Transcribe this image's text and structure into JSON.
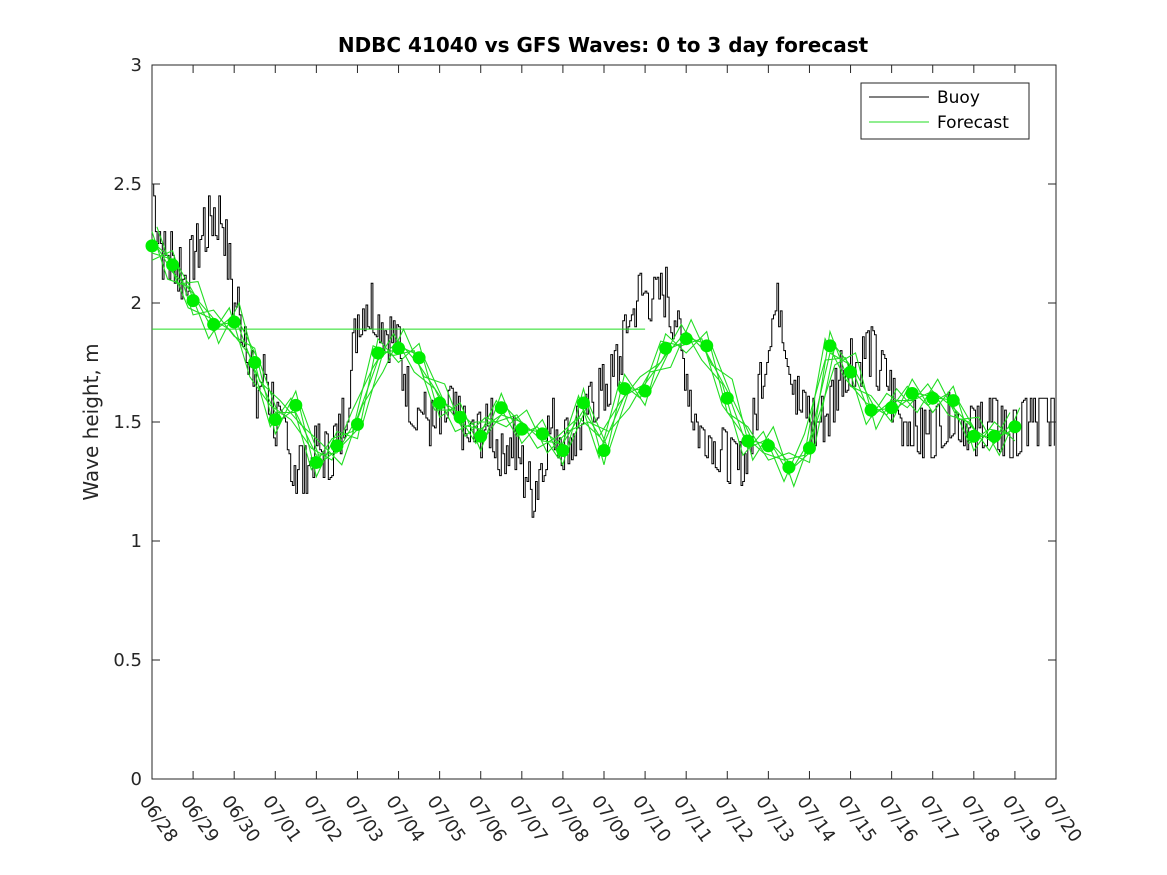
{
  "chart_data": {
    "type": "line",
    "title": "NDBC 41040 vs GFS Waves: 0 to 3 day forecast",
    "xlabel": "",
    "ylabel": "Wave height, m",
    "x_ticks": [
      "06/28",
      "06/29",
      "06/30",
      "07/01",
      "07/02",
      "07/03",
      "07/04",
      "07/05",
      "07/06",
      "07/07",
      "07/08",
      "07/09",
      "07/10",
      "07/11",
      "07/12",
      "07/13",
      "07/14",
      "07/15",
      "07/16",
      "07/17",
      "07/18",
      "07/19",
      "07/20"
    ],
    "xlim_days": [
      0,
      22
    ],
    "ylim": [
      0,
      3
    ],
    "y_ticks": [
      "0",
      "0.5",
      "1",
      "1.5",
      "2",
      "2.5",
      "3"
    ],
    "grid": false,
    "legend": {
      "position": "top-right",
      "entries": [
        {
          "label": "Buoy",
          "color": "#000000"
        },
        {
          "label": "Forecast",
          "color": "#00dd00"
        }
      ]
    },
    "colors": {
      "buoy": "#000000",
      "forecast": "#22dd22",
      "analysis_points": "#00ee00"
    },
    "reference_line": {
      "y": 1.89,
      "x_end_days": 12
    },
    "buoy": {
      "x": [
        0,
        0.25,
        0.5,
        0.75,
        1,
        1.25,
        1.5,
        1.75,
        2,
        2.25,
        2.5,
        2.75,
        3,
        3.25,
        3.5,
        3.75,
        4,
        4.25,
        4.5,
        4.75,
        5,
        5.25,
        5.5,
        5.75,
        6,
        6.25,
        6.5,
        6.75,
        7,
        7.25,
        7.5,
        7.75,
        8,
        8.25,
        8.5,
        8.75,
        9,
        9.25,
        9.5,
        9.75,
        10,
        10.25,
        10.5,
        10.75,
        11,
        11.25,
        11.5,
        11.75,
        12,
        12.25,
        12.5,
        12.75,
        13,
        13.25,
        13.5,
        13.75,
        14,
        14.25,
        14.5,
        14.75,
        15,
        15.25,
        15.5,
        15.75,
        16,
        16.25,
        16.5,
        16.75,
        17,
        17.25,
        17.5,
        17.75,
        18,
        18.25,
        18.5,
        18.75,
        19,
        19.25,
        19.5,
        19.75,
        20,
        20.25,
        20.5,
        20.75,
        21,
        21.25,
        21.5,
        21.75,
        22
      ],
      "values": [
        2.5,
        2.2,
        2.2,
        2.1,
        2.2,
        2.3,
        2.4,
        2.3,
        2.0,
        1.9,
        1.6,
        1.7,
        1.5,
        1.4,
        1.3,
        1.3,
        1.4,
        1.35,
        1.4,
        1.6,
        1.95,
        2.0,
        1.95,
        1.85,
        1.8,
        1.6,
        1.55,
        1.5,
        1.45,
        1.55,
        1.5,
        1.4,
        1.45,
        1.5,
        1.35,
        1.45,
        1.3,
        1.2,
        1.35,
        1.5,
        1.4,
        1.45,
        1.5,
        1.6,
        1.65,
        1.7,
        1.85,
        2.0,
        2.05,
        2.0,
        2.05,
        1.9,
        1.7,
        1.5,
        1.45,
        1.4,
        1.35,
        1.3,
        1.4,
        1.6,
        1.9,
        2.0,
        1.8,
        1.55,
        1.5,
        1.5,
        1.55,
        1.7,
        1.75,
        1.75,
        1.8,
        1.7,
        1.6,
        1.5,
        1.5,
        1.45,
        1.45,
        1.5,
        1.55,
        1.5,
        1.45,
        1.5,
        1.5,
        1.45,
        1.45,
        1.5,
        1.5,
        1.5,
        1.5
      ]
    },
    "forecast_points": {
      "x": [
        0,
        0.5,
        1,
        1.5,
        2,
        2.5,
        3,
        3.5,
        4,
        4.5,
        5,
        5.5,
        6,
        6.5,
        7,
        7.5,
        8,
        8.5,
        9,
        9.5,
        10,
        10.5,
        11,
        11.5,
        12,
        12.5,
        13,
        13.5,
        14,
        14.5,
        15,
        15.5,
        16,
        16.5,
        17,
        17.5,
        18,
        18.5,
        19,
        19.5,
        20,
        20.5,
        21
      ],
      "values": [
        2.24,
        2.16,
        2.01,
        1.91,
        1.92,
        1.75,
        1.51,
        1.57,
        1.33,
        1.4,
        1.49,
        1.79,
        1.81,
        1.77,
        1.58,
        1.52,
        1.44,
        1.56,
        1.47,
        1.45,
        1.38,
        1.58,
        1.38,
        1.64,
        1.63,
        1.81,
        1.85,
        1.82,
        1.6,
        1.42,
        1.4,
        1.31,
        1.39,
        1.82,
        1.71,
        1.55,
        1.56,
        1.62,
        1.6,
        1.59,
        1.44,
        1.44,
        1.48
      ]
    }
  }
}
